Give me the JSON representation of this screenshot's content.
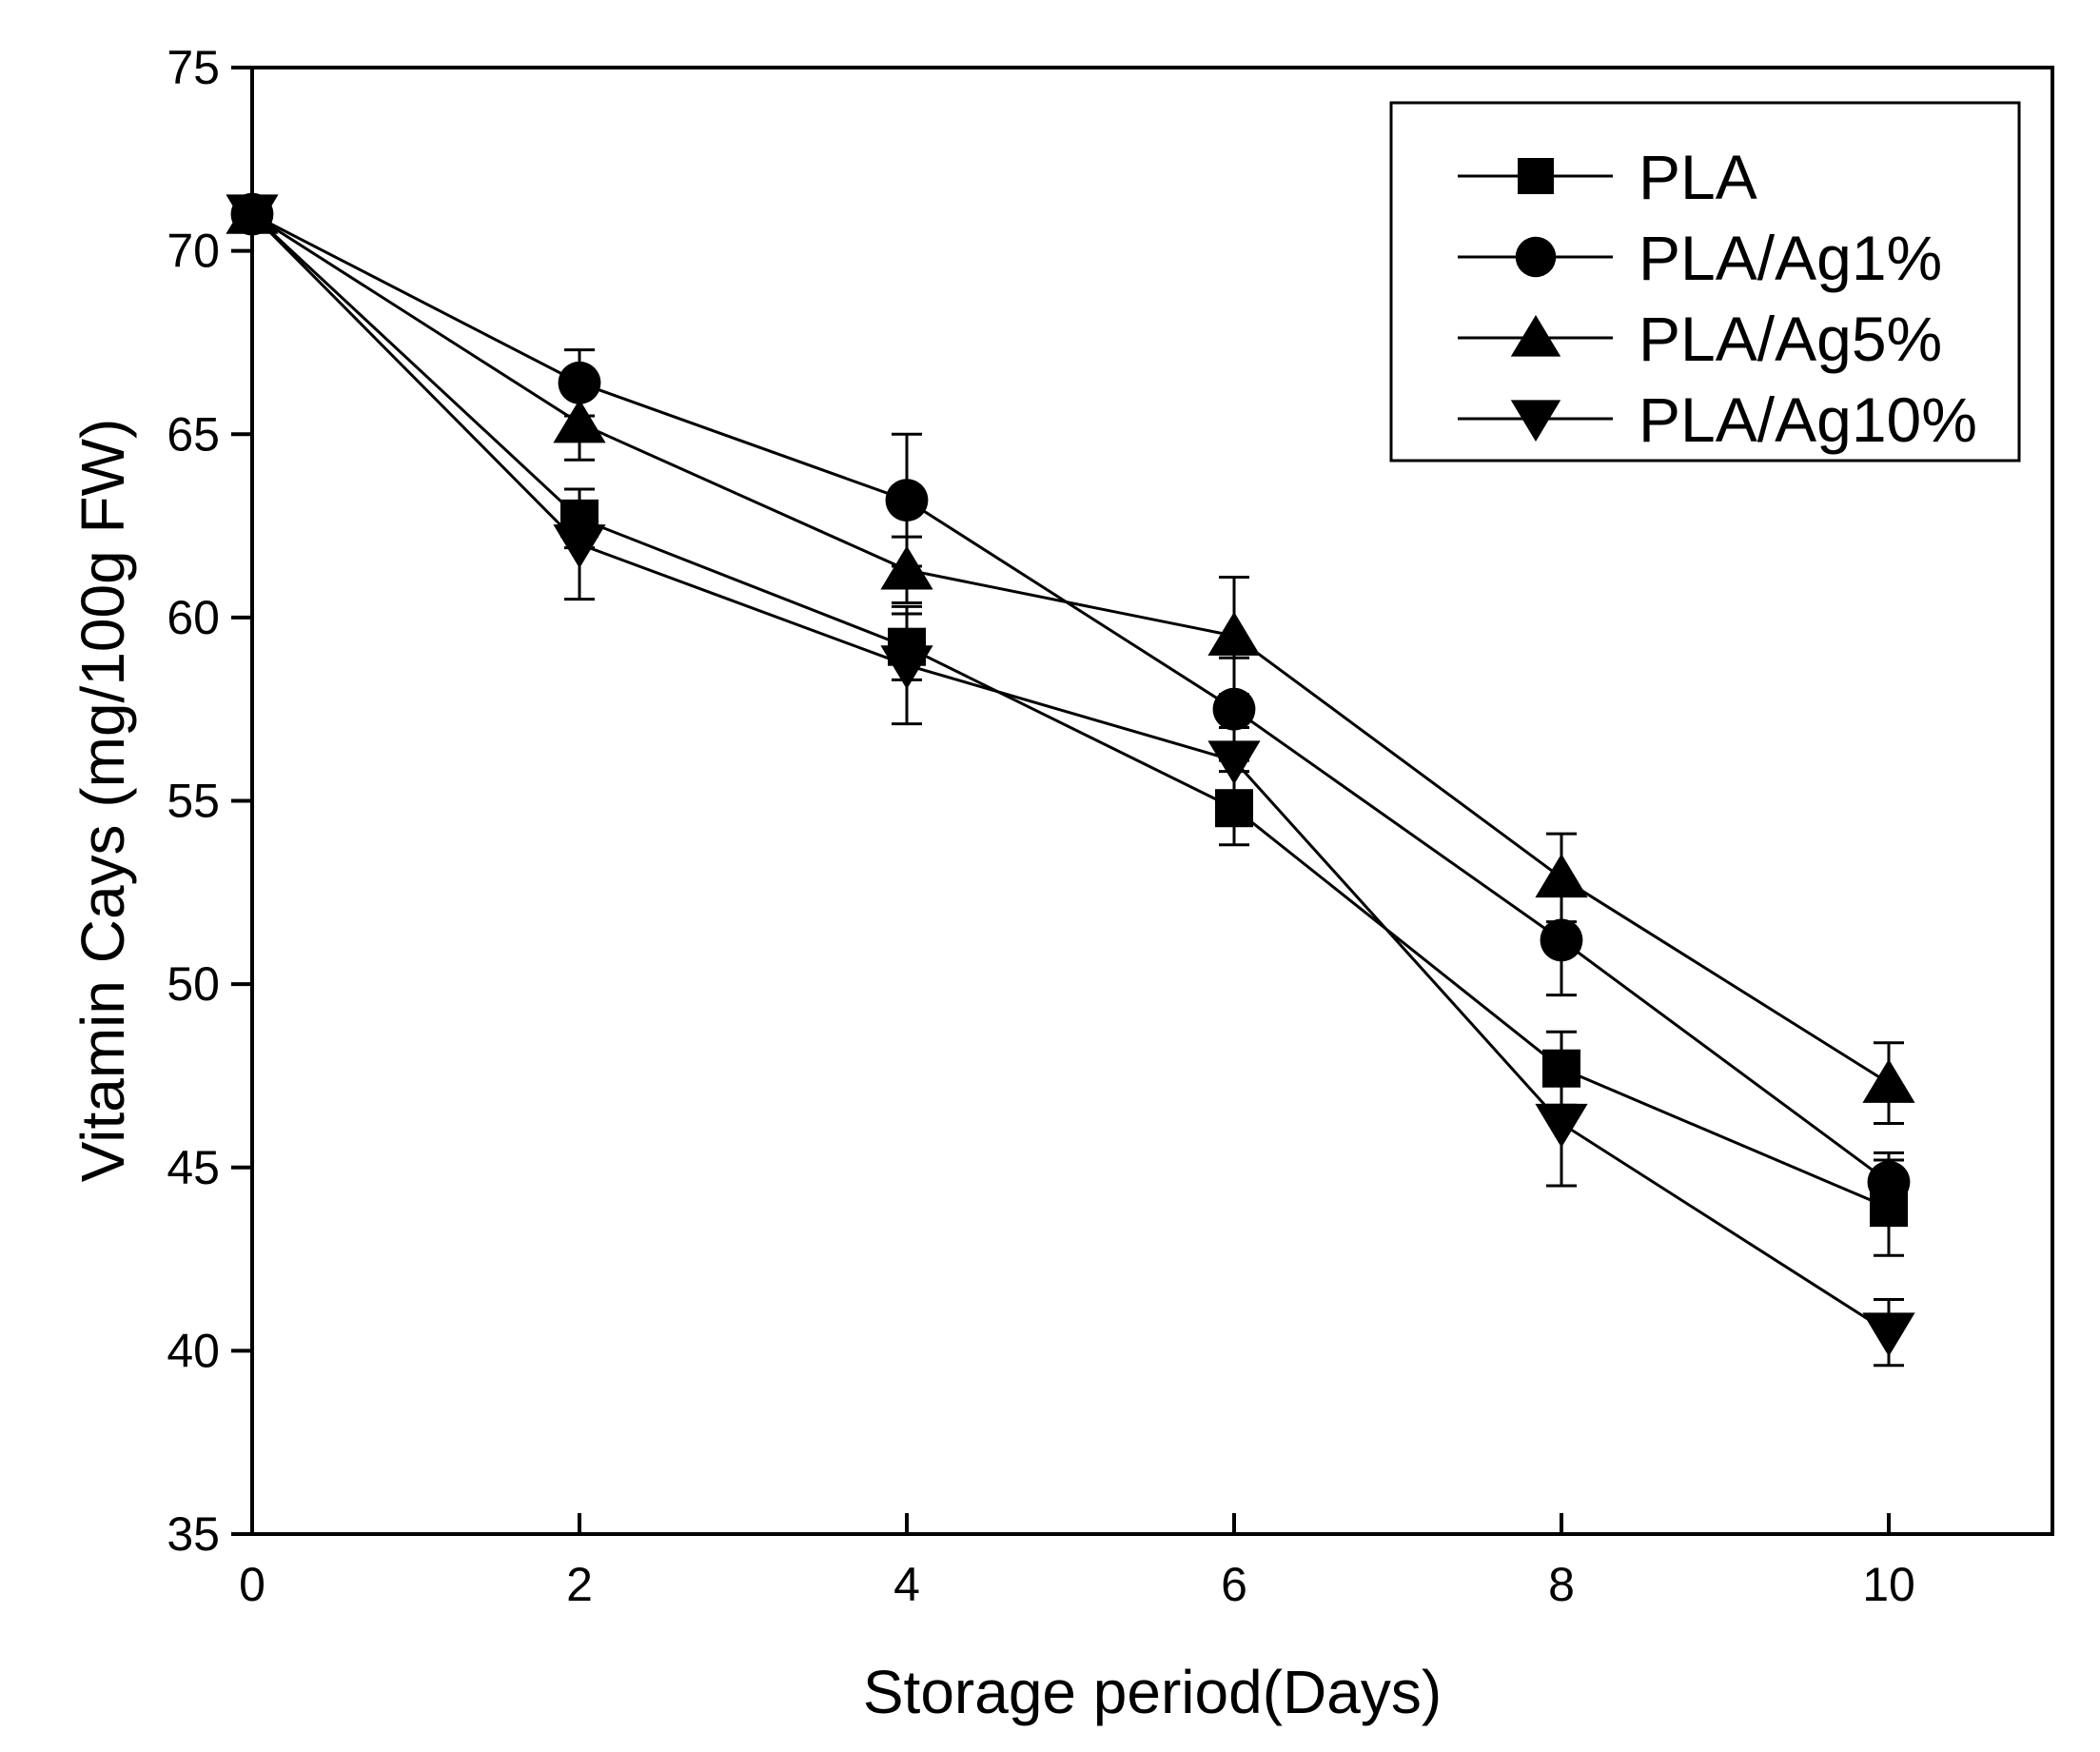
{
  "chart_data": {
    "type": "line",
    "title": "",
    "xlabel": "Storage period(Days)",
    "ylabel": "Vitamin Cays (mg/100g FW)",
    "xlim": [
      0,
      11
    ],
    "ylim": [
      35,
      75
    ],
    "xticks": [
      0,
      2,
      4,
      6,
      8,
      10
    ],
    "yticks": [
      35,
      40,
      45,
      50,
      55,
      60,
      65,
      70,
      75
    ],
    "x": [
      0,
      2,
      4,
      6,
      8,
      10
    ],
    "grid": false,
    "legend_position": "top-right",
    "colors": {
      "ink": "#000000",
      "background": "#ffffff"
    },
    "series": [
      {
        "name": "PLA",
        "marker": "square",
        "values": [
          71.0,
          62.7,
          59.2,
          54.8,
          47.7,
          43.9
        ],
        "errors": [
          0.2,
          0.8,
          0.9,
          1.0,
          1.0,
          1.3
        ]
      },
      {
        "name": "PLA/Ag1%",
        "marker": "circle",
        "values": [
          71.0,
          66.4,
          63.2,
          57.5,
          51.2,
          44.6
        ],
        "errors": [
          0.2,
          0.9,
          1.8,
          1.4,
          1.5,
          0.8
        ]
      },
      {
        "name": "PLA/Ag5%",
        "marker": "triangle-up",
        "values": [
          71.0,
          65.3,
          61.3,
          59.5,
          52.9,
          47.3
        ],
        "errors": [
          0.2,
          1.0,
          0.9,
          1.6,
          1.2,
          1.1
        ]
      },
      {
        "name": "PLA/Ag10%",
        "marker": "triangle-down",
        "values": [
          71.0,
          62.0,
          58.7,
          56.1,
          46.2,
          40.5
        ],
        "errors": [
          0.2,
          1.5,
          1.6,
          0.9,
          1.7,
          0.9
        ]
      }
    ]
  }
}
